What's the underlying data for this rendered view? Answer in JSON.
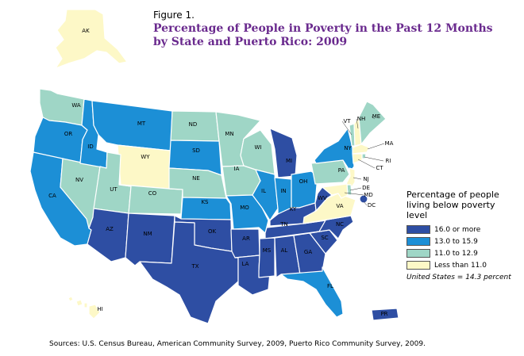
{
  "figure": {
    "number": "Figure 1.",
    "title": "Percentage of People in Poverty in the Past 12 Months by State and Puerto Rico: 2009"
  },
  "legend": {
    "heading": "Percentage of people living below poverty level",
    "categories": [
      {
        "label": "16.0 or more",
        "color": "#2e4ea3"
      },
      {
        "label": "13.0 to 15.9",
        "color": "#1c8fd6"
      },
      {
        "label": "11.0 to 12.9",
        "color": "#9fd6c6"
      },
      {
        "label": "Less than 11.0",
        "color": "#fdf8c7"
      }
    ]
  },
  "us_note": "United States = 14.3 percent",
  "source": "Sources: U.S. Census Bureau, American Community Survey, 2009, Puerto Rico Community Survey, 2009.",
  "states": [
    {
      "abbr": "WA",
      "category": "11.0 to 12.9"
    },
    {
      "abbr": "OR",
      "category": "13.0 to 15.9"
    },
    {
      "abbr": "CA",
      "category": "13.0 to 15.9"
    },
    {
      "abbr": "NV",
      "category": "11.0 to 12.9"
    },
    {
      "abbr": "ID",
      "category": "13.0 to 15.9"
    },
    {
      "abbr": "MT",
      "category": "13.0 to 15.9"
    },
    {
      "abbr": "WY",
      "category": "Less than 11.0"
    },
    {
      "abbr": "UT",
      "category": "11.0 to 12.9"
    },
    {
      "abbr": "CO",
      "category": "11.0 to 12.9"
    },
    {
      "abbr": "AZ",
      "category": "16.0 or more"
    },
    {
      "abbr": "NM",
      "category": "16.0 or more"
    },
    {
      "abbr": "ND",
      "category": "11.0 to 12.9"
    },
    {
      "abbr": "SD",
      "category": "13.0 to 15.9"
    },
    {
      "abbr": "NE",
      "category": "11.0 to 12.9"
    },
    {
      "abbr": "KS",
      "category": "13.0 to 15.9"
    },
    {
      "abbr": "OK",
      "category": "16.0 or more"
    },
    {
      "abbr": "TX",
      "category": "16.0 or more"
    },
    {
      "abbr": "MN",
      "category": "11.0 to 12.9"
    },
    {
      "abbr": "IA",
      "category": "11.0 to 12.9"
    },
    {
      "abbr": "MO",
      "category": "13.0 to 15.9"
    },
    {
      "abbr": "AR",
      "category": "16.0 or more"
    },
    {
      "abbr": "LA",
      "category": "16.0 or more"
    },
    {
      "abbr": "WI",
      "category": "11.0 to 12.9"
    },
    {
      "abbr": "IL",
      "category": "13.0 to 15.9"
    },
    {
      "abbr": "MI",
      "category": "16.0 or more"
    },
    {
      "abbr": "IN",
      "category": "13.0 to 15.9"
    },
    {
      "abbr": "OH",
      "category": "13.0 to 15.9"
    },
    {
      "abbr": "KY",
      "category": "16.0 or more"
    },
    {
      "abbr": "TN",
      "category": "16.0 or more"
    },
    {
      "abbr": "MS",
      "category": "16.0 or more"
    },
    {
      "abbr": "AL",
      "category": "16.0 or more"
    },
    {
      "abbr": "GA",
      "category": "16.0 or more"
    },
    {
      "abbr": "FL",
      "category": "13.0 to 15.9"
    },
    {
      "abbr": "SC",
      "category": "16.0 or more"
    },
    {
      "abbr": "NC",
      "category": "16.0 or more"
    },
    {
      "abbr": "VA",
      "category": "Less than 11.0"
    },
    {
      "abbr": "WV",
      "category": "16.0 or more"
    },
    {
      "abbr": "PA",
      "category": "11.0 to 12.9"
    },
    {
      "abbr": "NY",
      "category": "13.0 to 15.9"
    },
    {
      "abbr": "VT",
      "category": "11.0 to 12.9"
    },
    {
      "abbr": "NH",
      "category": "Less than 11.0"
    },
    {
      "abbr": "ME",
      "category": "11.0 to 12.9"
    },
    {
      "abbr": "MA",
      "category": "Less than 11.0"
    },
    {
      "abbr": "RI",
      "category": "11.0 to 12.9"
    },
    {
      "abbr": "CT",
      "category": "Less than 11.0"
    },
    {
      "abbr": "NJ",
      "category": "Less than 11.0"
    },
    {
      "abbr": "DE",
      "category": "11.0 to 12.9"
    },
    {
      "abbr": "MD",
      "category": "Less than 11.0"
    },
    {
      "abbr": "DC",
      "category": "16.0 or more"
    },
    {
      "abbr": "AK",
      "category": "Less than 11.0"
    },
    {
      "abbr": "HI",
      "category": "Less than 11.0"
    },
    {
      "abbr": "PR",
      "category": "16.0 or more"
    }
  ]
}
